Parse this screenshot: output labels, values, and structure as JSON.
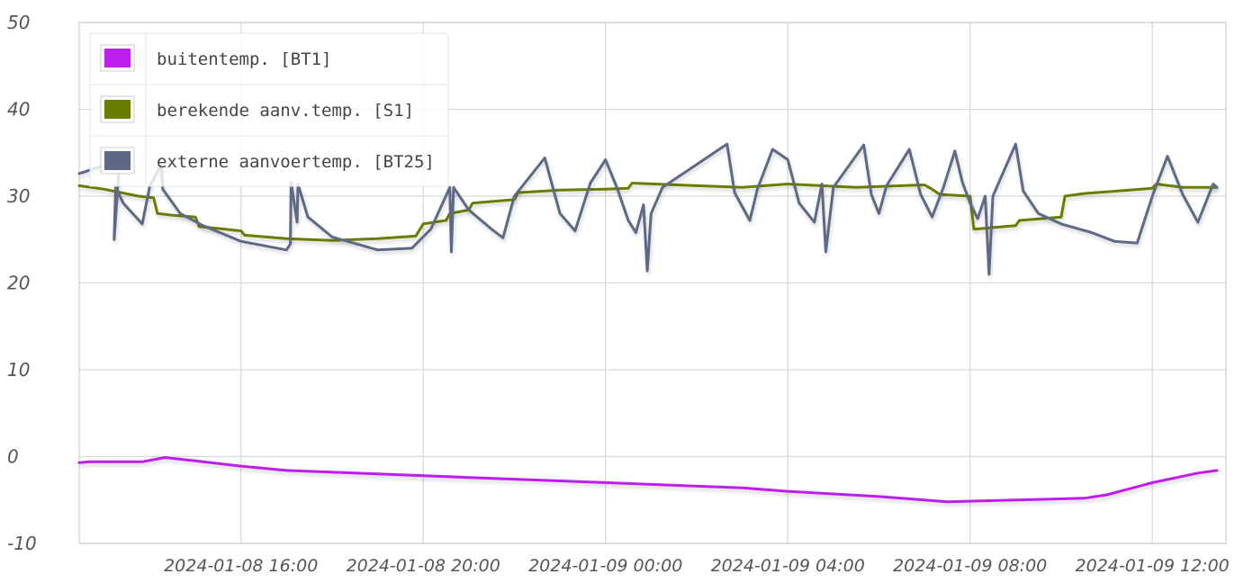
{
  "chart_data": {
    "type": "line",
    "title": "",
    "xlabel": "",
    "ylabel": "",
    "ylim": [
      -10,
      50
    ],
    "xlim": [
      "2024-01-08 12:27",
      "2024-01-09 13:37"
    ],
    "yticks": [
      "50",
      "40",
      "30",
      "20",
      "10",
      "0",
      "-10"
    ],
    "xticks": [
      "2024-01-08 16:00",
      "2024-01-08 20:00",
      "2024-01-09 00:00",
      "2024-01-09 04:00",
      "2024-01-09 08:00",
      "2024-01-09 12:00"
    ],
    "grid": true,
    "legend_position": "top-left",
    "series": [
      {
        "name": "buitentemp. [BT1]",
        "color": "#bf1fee",
        "points": [
          [
            "2024-01-08 12:27",
            -0.7
          ],
          [
            "2024-01-08 12:40",
            -0.6
          ],
          [
            "2024-01-08 13:50",
            -0.6
          ],
          [
            "2024-01-08 14:20",
            -0.1
          ],
          [
            "2024-01-08 15:00",
            -0.5
          ],
          [
            "2024-01-08 16:00",
            -1.1
          ],
          [
            "2024-01-08 17:00",
            -1.6
          ],
          [
            "2024-01-08 19:00",
            -2.0
          ],
          [
            "2024-01-08 21:00",
            -2.4
          ],
          [
            "2024-01-08 23:00",
            -2.8
          ],
          [
            "2024-01-09 01:00",
            -3.2
          ],
          [
            "2024-01-09 03:00",
            -3.6
          ],
          [
            "2024-01-09 04:00",
            -4.0
          ],
          [
            "2024-01-09 06:00",
            -4.6
          ],
          [
            "2024-01-09 07:30",
            -5.2
          ],
          [
            "2024-01-09 09:00",
            -5.0
          ],
          [
            "2024-01-09 10:30",
            -4.8
          ],
          [
            "2024-01-09 11:00",
            -4.4
          ],
          [
            "2024-01-09 12:00",
            -3.0
          ],
          [
            "2024-01-09 13:00",
            -1.9
          ],
          [
            "2024-01-09 13:25",
            -1.6
          ]
        ]
      },
      {
        "name": "berekende aanv.temp. [S1]",
        "color": "#6b7d00",
        "points": [
          [
            "2024-01-08 12:27",
            31.2
          ],
          [
            "2024-01-08 13:00",
            30.8
          ],
          [
            "2024-01-08 13:45",
            30.0
          ],
          [
            "2024-01-08 14:05",
            29.8
          ],
          [
            "2024-01-08 14:10",
            28.0
          ],
          [
            "2024-01-08 14:30",
            27.8
          ],
          [
            "2024-01-08 15:00",
            27.6
          ],
          [
            "2024-01-08 15:05",
            26.5
          ],
          [
            "2024-01-08 16:00",
            26.0
          ],
          [
            "2024-01-08 16:05",
            25.5
          ],
          [
            "2024-01-08 17:00",
            25.1
          ],
          [
            "2024-01-08 18:00",
            24.9
          ],
          [
            "2024-01-08 19:00",
            25.1
          ],
          [
            "2024-01-08 19:50",
            25.4
          ],
          [
            "2024-01-08 20:00",
            26.8
          ],
          [
            "2024-01-08 20:30",
            27.2
          ],
          [
            "2024-01-08 20:35",
            28.0
          ],
          [
            "2024-01-08 21:00",
            28.4
          ],
          [
            "2024-01-08 21:05",
            29.2
          ],
          [
            "2024-01-08 22:00",
            29.6
          ],
          [
            "2024-01-08 22:05",
            30.4
          ],
          [
            "2024-01-08 23:00",
            30.7
          ],
          [
            "2024-01-09 00:00",
            30.8
          ],
          [
            "2024-01-09 00:30",
            30.9
          ],
          [
            "2024-01-09 00:35",
            31.5
          ],
          [
            "2024-01-09 02:00",
            31.2
          ],
          [
            "2024-01-09 03:00",
            31.0
          ],
          [
            "2024-01-09 04:00",
            31.4
          ],
          [
            "2024-01-09 05:30",
            31.0
          ],
          [
            "2024-01-09 07:00",
            31.3
          ],
          [
            "2024-01-09 07:10",
            30.8
          ],
          [
            "2024-01-09 07:20",
            30.2
          ],
          [
            "2024-01-09 08:00",
            30.0
          ],
          [
            "2024-01-09 08:05",
            26.2
          ],
          [
            "2024-01-09 09:00",
            26.6
          ],
          [
            "2024-01-09 09:05",
            27.2
          ],
          [
            "2024-01-09 10:00",
            27.6
          ],
          [
            "2024-01-09 10:05",
            30.0
          ],
          [
            "2024-01-09 10:30",
            30.3
          ],
          [
            "2024-01-09 12:00",
            30.9
          ],
          [
            "2024-01-09 12:05",
            31.4
          ],
          [
            "2024-01-09 12:40",
            31.0
          ],
          [
            "2024-01-09 13:25",
            31.0
          ]
        ]
      },
      {
        "name": "externe aanvoertemp. [BT25]",
        "color": "#5d6985",
        "points": [
          [
            "2024-01-08 12:27",
            32.6
          ],
          [
            "2024-01-08 12:55",
            33.4
          ],
          [
            "2024-01-08 13:20",
            33.8
          ],
          [
            "2024-01-08 13:13",
            25.0
          ],
          [
            "2024-01-08 13:15",
            31.0
          ],
          [
            "2024-01-08 13:25",
            29.2
          ],
          [
            "2024-01-08 13:50",
            26.8
          ],
          [
            "2024-01-08 14:00",
            31.2
          ],
          [
            "2024-01-08 14:15",
            33.6
          ],
          [
            "2024-01-08 14:17",
            30.8
          ],
          [
            "2024-01-08 14:40",
            28.0
          ],
          [
            "2024-01-08 15:10",
            26.6
          ],
          [
            "2024-01-08 16:00",
            24.8
          ],
          [
            "2024-01-08 17:00",
            23.8
          ],
          [
            "2024-01-08 17:05",
            24.5
          ],
          [
            "2024-01-08 17:06",
            31.6
          ],
          [
            "2024-01-08 17:14",
            27.0
          ],
          [
            "2024-01-08 17:15",
            31.4
          ],
          [
            "2024-01-08 17:28",
            27.6
          ],
          [
            "2024-01-08 18:00",
            25.3
          ],
          [
            "2024-01-08 19:00",
            23.8
          ],
          [
            "2024-01-08 19:45",
            24.0
          ],
          [
            "2024-01-08 20:10",
            26.2
          ],
          [
            "2024-01-08 20:35",
            31.0
          ],
          [
            "2024-01-08 20:37",
            23.6
          ],
          [
            "2024-01-08 20:40",
            31.0
          ],
          [
            "2024-01-08 21:00",
            28.4
          ],
          [
            "2024-01-08 21:30",
            26.2
          ],
          [
            "2024-01-08 21:45",
            25.2
          ],
          [
            "2024-01-08 22:00",
            30.0
          ],
          [
            "2024-01-08 22:40",
            34.4
          ],
          [
            "2024-01-08 23:00",
            28.0
          ],
          [
            "2024-01-08 23:20",
            26.0
          ],
          [
            "2024-01-08 23:40",
            31.5
          ],
          [
            "2024-01-09 00:00",
            34.2
          ],
          [
            "2024-01-09 00:15",
            31.0
          ],
          [
            "2024-01-09 00:30",
            27.2
          ],
          [
            "2024-01-09 00:40",
            25.8
          ],
          [
            "2024-01-09 00:50",
            29.0
          ],
          [
            "2024-01-09 00:55",
            21.4
          ],
          [
            "2024-01-09 01:00",
            28.0
          ],
          [
            "2024-01-09 01:15",
            31.0
          ],
          [
            "2024-01-09 02:40",
            36.0
          ],
          [
            "2024-01-09 02:50",
            30.4
          ],
          [
            "2024-01-09 03:10",
            27.2
          ],
          [
            "2024-01-09 03:20",
            30.8
          ],
          [
            "2024-01-09 03:40",
            35.4
          ],
          [
            "2024-01-09 04:00",
            34.2
          ],
          [
            "2024-01-09 04:15",
            29.2
          ],
          [
            "2024-01-09 04:35",
            27.0
          ],
          [
            "2024-01-09 04:45",
            31.4
          ],
          [
            "2024-01-09 04:50",
            23.6
          ],
          [
            "2024-01-09 05:00",
            31.0
          ],
          [
            "2024-01-09 05:40",
            35.9
          ],
          [
            "2024-01-09 05:50",
            30.2
          ],
          [
            "2024-01-09 06:00",
            28.0
          ],
          [
            "2024-01-09 06:10",
            31.2
          ],
          [
            "2024-01-09 06:40",
            35.4
          ],
          [
            "2024-01-09 06:55",
            30.2
          ],
          [
            "2024-01-09 07:10",
            27.6
          ],
          [
            "2024-01-09 07:25",
            31.0
          ],
          [
            "2024-01-09 07:40",
            35.2
          ],
          [
            "2024-01-09 07:50",
            31.6
          ],
          [
            "2024-01-09 08:00",
            29.2
          ],
          [
            "2024-01-09 08:10",
            27.4
          ],
          [
            "2024-01-09 08:20",
            30.0
          ],
          [
            "2024-01-09 08:25",
            21.0
          ],
          [
            "2024-01-09 08:30",
            30.0
          ],
          [
            "2024-01-09 09:00",
            36.0
          ],
          [
            "2024-01-09 09:10",
            30.6
          ],
          [
            "2024-01-09 09:30",
            28.0
          ],
          [
            "2024-01-09 10:00",
            26.8
          ],
          [
            "2024-01-09 10:40",
            25.8
          ],
          [
            "2024-01-09 11:10",
            24.8
          ],
          [
            "2024-01-09 11:40",
            24.6
          ],
          [
            "2024-01-09 12:00",
            30.0
          ],
          [
            "2024-01-09 12:20",
            34.6
          ],
          [
            "2024-01-09 12:40",
            30.2
          ],
          [
            "2024-01-09 13:00",
            27.0
          ],
          [
            "2024-01-09 13:20",
            31.4
          ],
          [
            "2024-01-09 13:25",
            31.0
          ]
        ]
      }
    ]
  }
}
